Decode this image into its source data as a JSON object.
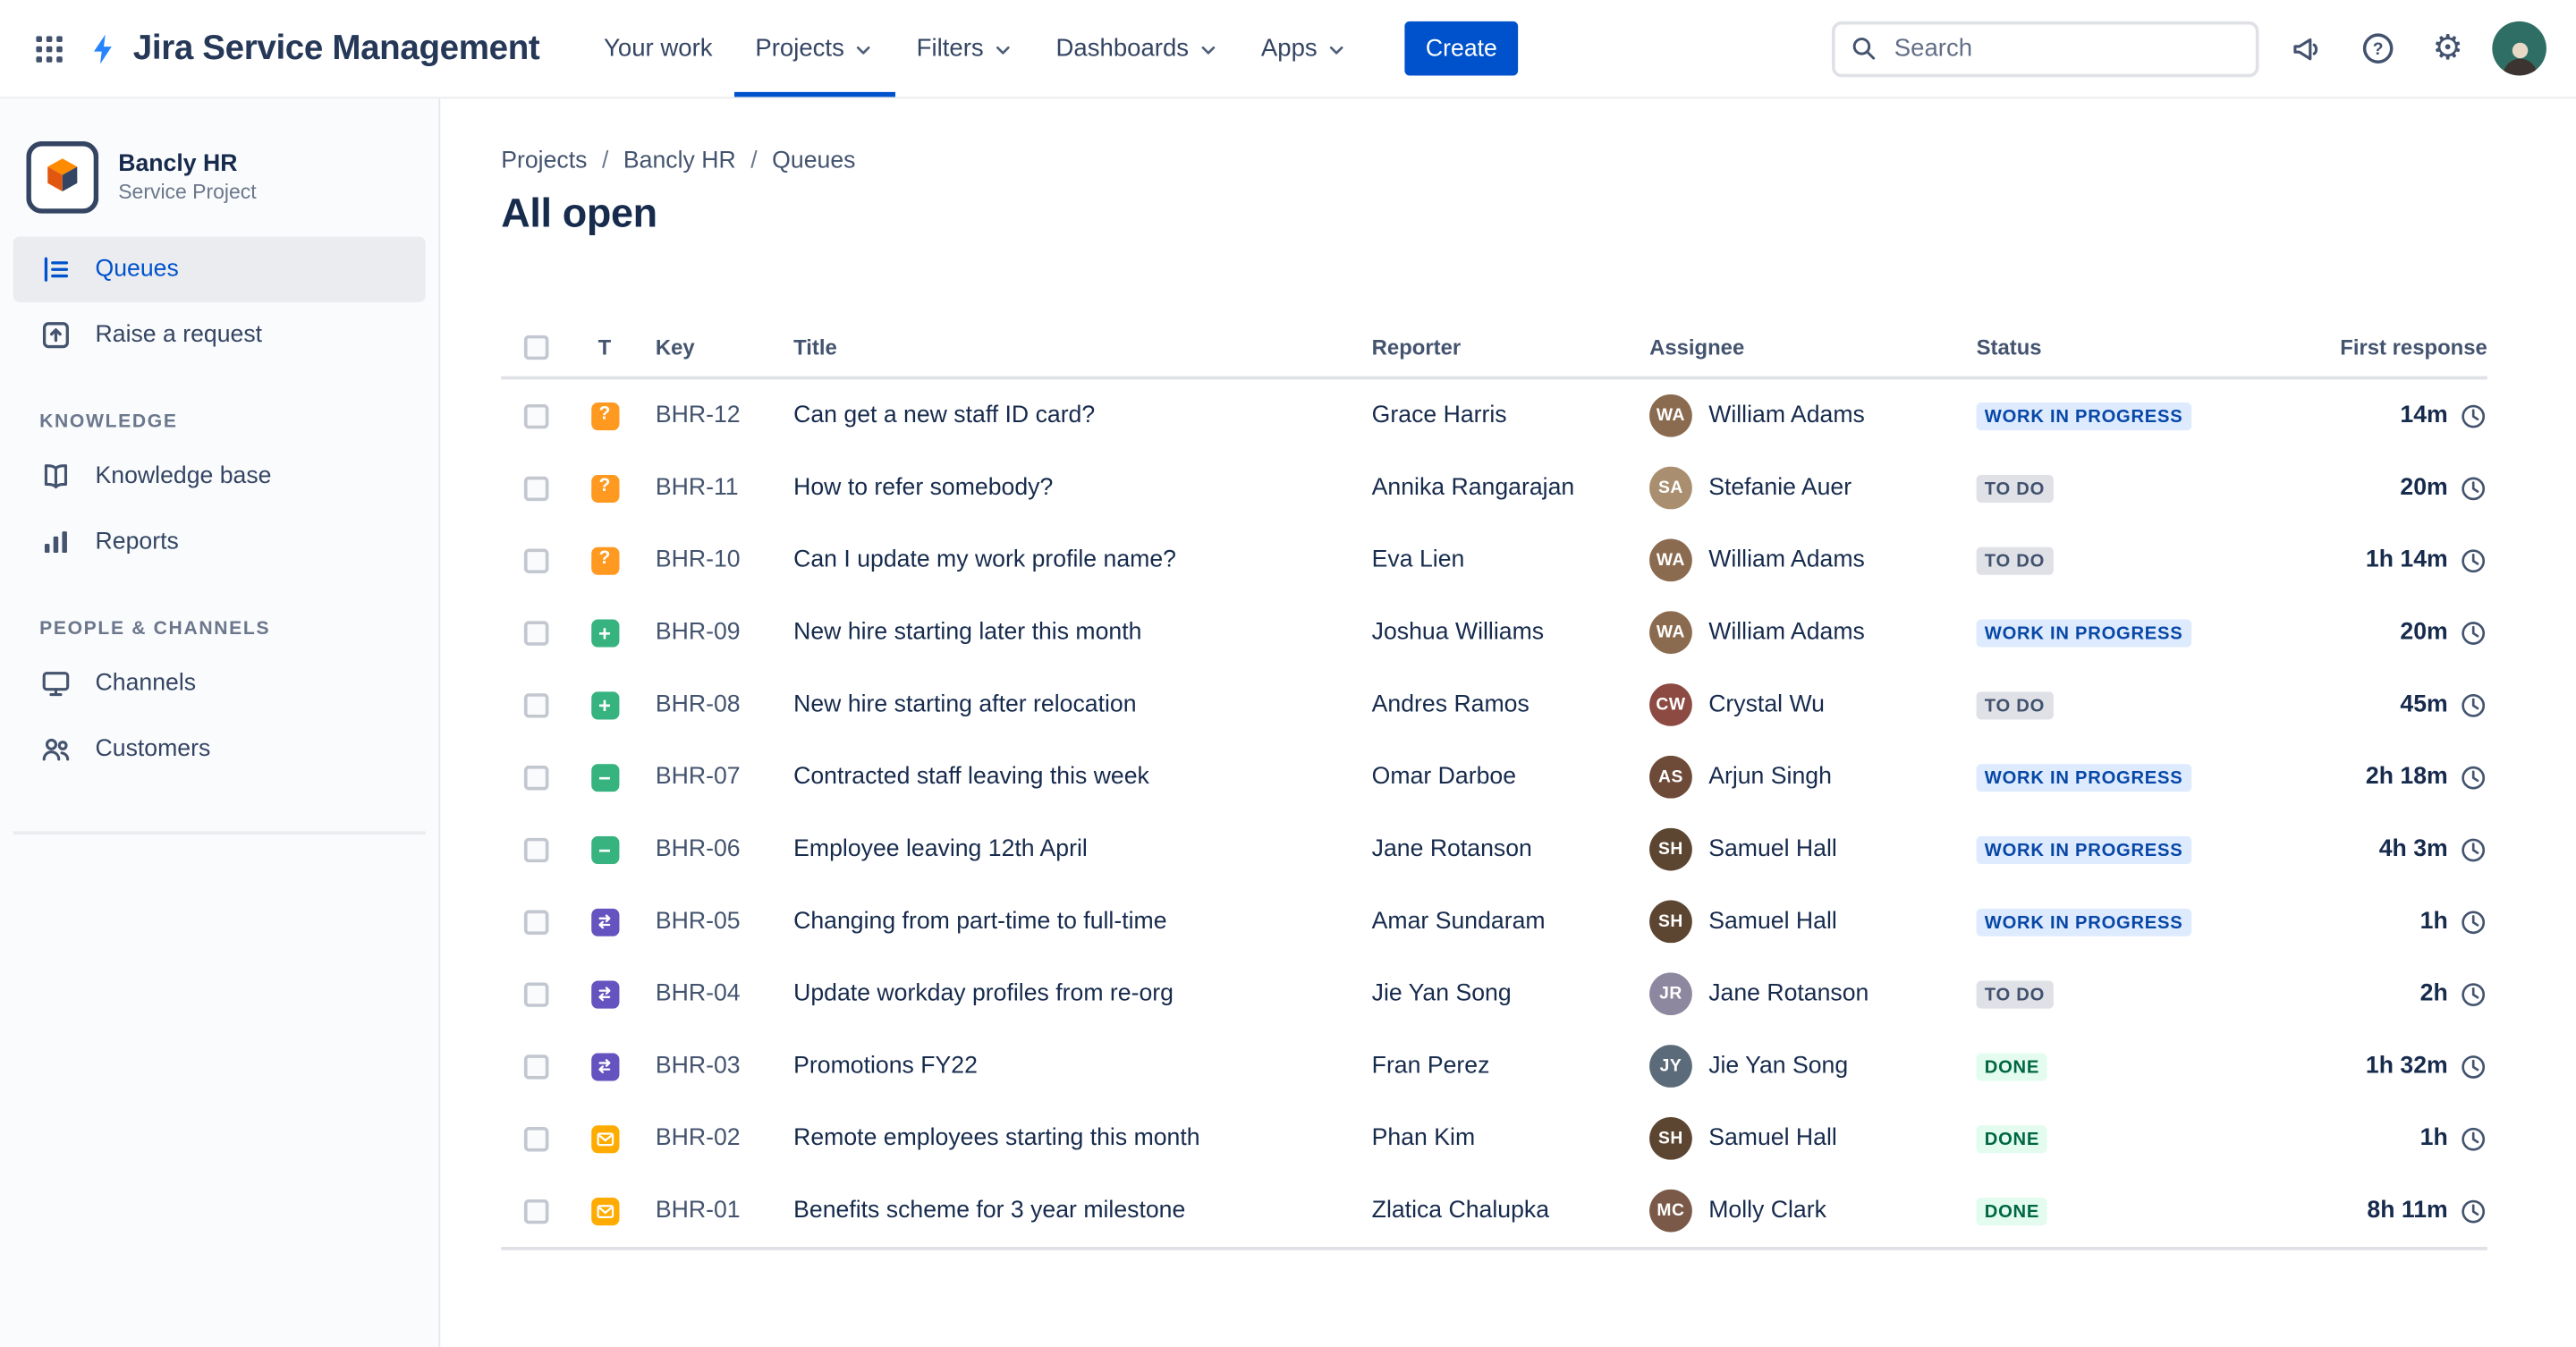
{
  "topbar": {
    "app_title": "Jira Service Management",
    "nav": [
      {
        "label": "Your work",
        "chevron": false,
        "active": false
      },
      {
        "label": "Projects",
        "chevron": true,
        "active": true
      },
      {
        "label": "Filters",
        "chevron": true,
        "active": false
      },
      {
        "label": "Dashboards",
        "chevron": true,
        "active": false
      },
      {
        "label": "Apps",
        "chevron": true,
        "active": false
      }
    ],
    "create_label": "Create",
    "search_placeholder": "Search",
    "icon_buttons": [
      "app-switcher-icon",
      "announcement-icon",
      "help-icon",
      "gear-icon",
      "user-avatar"
    ]
  },
  "sidebar": {
    "project_name": "Bancly HR",
    "project_type": "Service Project",
    "items_top": [
      {
        "label": "Queues",
        "icon": "queues-icon",
        "selected": true
      },
      {
        "label": "Raise a request",
        "icon": "raise-request-icon",
        "selected": false
      }
    ],
    "sections": [
      {
        "title": "KNOWLEDGE",
        "items": [
          {
            "label": "Knowledge base",
            "icon": "knowledge-base-icon",
            "selected": false
          },
          {
            "label": "Reports",
            "icon": "reports-icon",
            "selected": false
          }
        ]
      },
      {
        "title": "PEOPLE & CHANNELS",
        "items": [
          {
            "label": "Channels",
            "icon": "channels-icon",
            "selected": false
          },
          {
            "label": "Customers",
            "icon": "customers-icon",
            "selected": false
          }
        ]
      }
    ]
  },
  "main": {
    "breadcrumb": [
      "Projects",
      "Bancly HR",
      "Queues"
    ],
    "title": "All open",
    "table": {
      "headers": [
        "T",
        "Key",
        "Title",
        "Reporter",
        "Assignee",
        "Status",
        "First response"
      ],
      "rows": [
        {
          "type": "question",
          "key": "BHR-12",
          "title": "Can get a new staff ID card?",
          "reporter": "Grace Harris",
          "assignee": "William Adams",
          "assignee_color": "#8A6B4F",
          "status": "WORK IN PROGRESS",
          "response": "14m"
        },
        {
          "type": "question",
          "key": "BHR-11",
          "title": "How to refer somebody?",
          "reporter": "Annika Rangarajan",
          "assignee": "Stefanie Auer",
          "assignee_color": "#A98F6F",
          "status": "TO DO",
          "response": "20m"
        },
        {
          "type": "question",
          "key": "BHR-10",
          "title": "Can I update my work profile name?",
          "reporter": "Eva Lien",
          "assignee": "William Adams",
          "assignee_color": "#8A6B4F",
          "status": "TO DO",
          "response": "1h 14m"
        },
        {
          "type": "add",
          "key": "BHR-09",
          "title": "New hire starting later this month",
          "reporter": "Joshua Williams",
          "assignee": "William Adams",
          "assignee_color": "#8A6B4F",
          "status": "WORK IN PROGRESS",
          "response": "20m"
        },
        {
          "type": "add",
          "key": "BHR-08",
          "title": "New hire starting after relocation",
          "reporter": "Andres Ramos",
          "assignee": "Crystal Wu",
          "assignee_color": "#8C4A42",
          "status": "TO DO",
          "response": "45m"
        },
        {
          "type": "remove",
          "key": "BHR-07",
          "title": "Contracted staff leaving this week",
          "reporter": "Omar Darboe",
          "assignee": "Arjun Singh",
          "assignee_color": "#6E4A38",
          "status": "WORK IN PROGRESS",
          "response": "2h 18m"
        },
        {
          "type": "remove",
          "key": "BHR-06",
          "title": "Employee leaving 12th April",
          "reporter": "Jane Rotanson",
          "assignee": "Samuel Hall",
          "assignee_color": "#5C4632",
          "status": "WORK IN PROGRESS",
          "response": "4h 3m"
        },
        {
          "type": "change",
          "key": "BHR-05",
          "title": "Changing from part-time to full-time",
          "reporter": "Amar Sundaram",
          "assignee": "Samuel Hall",
          "assignee_color": "#5C4632",
          "status": "WORK IN PROGRESS",
          "response": "1h"
        },
        {
          "type": "change",
          "key": "BHR-04",
          "title": "Update workday profiles from re-org",
          "reporter": "Jie Yan Song",
          "assignee": "Jane Rotanson",
          "assignee_color": "#8D87A0",
          "status": "TO DO",
          "response": "2h"
        },
        {
          "type": "change",
          "key": "BHR-03",
          "title": "Promotions FY22",
          "reporter": "Fran Perez",
          "assignee": "Jie Yan Song",
          "assignee_color": "#5C6B7A",
          "status": "DONE",
          "response": "1h 32m"
        },
        {
          "type": "email",
          "key": "BHR-02",
          "title": "Remote employees starting this month",
          "reporter": "Phan Kim",
          "assignee": "Samuel Hall",
          "assignee_color": "#5C4632",
          "status": "DONE",
          "response": "1h"
        },
        {
          "type": "email",
          "key": "BHR-01",
          "title": "Benefits scheme for 3 year milestone",
          "reporter": "Zlatica Chalupka",
          "assignee": "Molly Clark",
          "assignee_color": "#7A5948",
          "status": "DONE",
          "response": "8h 11m"
        }
      ]
    }
  },
  "colors": {
    "accent": "#0052CC",
    "status_inprogress_bg": "#DEEBFF",
    "status_inprogress_text": "#0747A6",
    "status_todo_bg": "#DFE1E6",
    "status_todo_text": "#42526E",
    "status_done_bg": "#E3FCEF",
    "status_done_text": "#006644",
    "type_question": "#FF991F",
    "type_add": "#36B37E",
    "type_remove": "#36B37E",
    "type_change": "#6554C0",
    "type_email": "#FFAB00"
  }
}
